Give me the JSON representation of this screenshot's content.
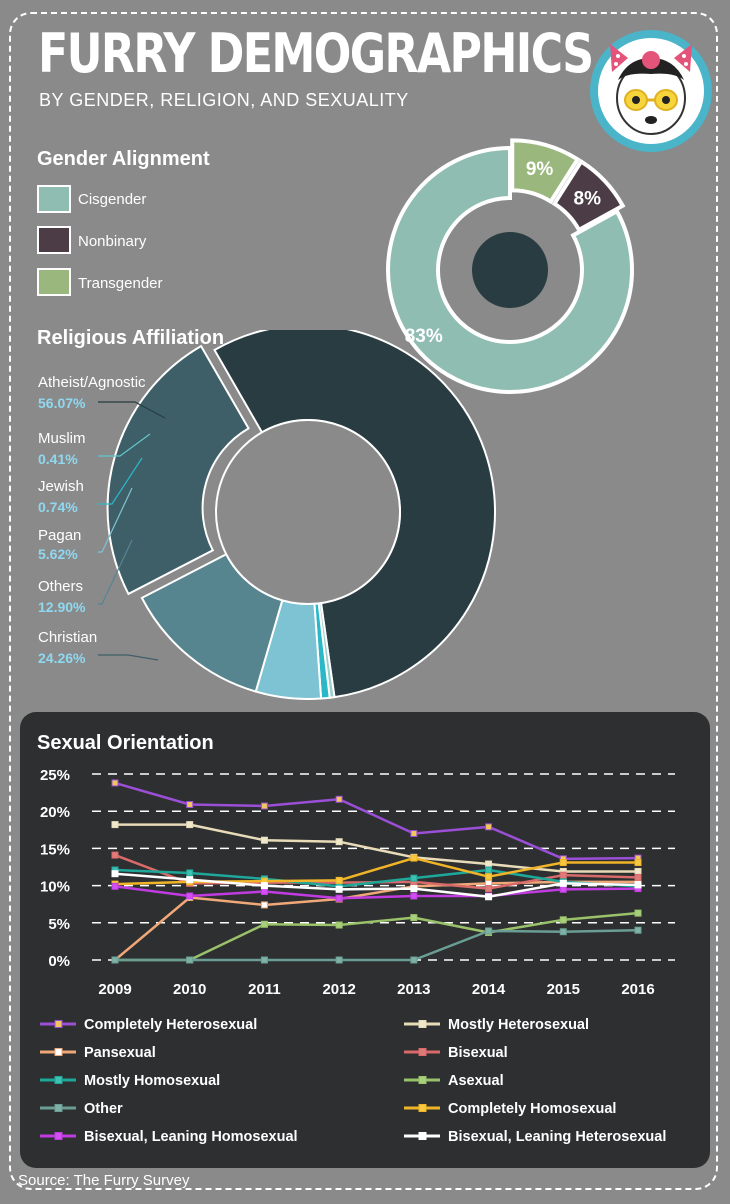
{
  "header": {
    "title": "FURRY DEMOGRAPHICS",
    "subtitle": "BY GENDER, RELIGION, AND SEXUALITY"
  },
  "logo": {
    "icon": "panda-with-bow-icon"
  },
  "gender": {
    "heading": "Gender Alignment",
    "legend": [
      {
        "label": "Cisgender",
        "color": "#8fbdb2"
      },
      {
        "label": "Nonbinary",
        "color": "#4c3c45"
      },
      {
        "label": "Transgender",
        "color": "#9ab77e"
      }
    ]
  },
  "religion": {
    "heading": "Religious Affiliation",
    "labels": [
      {
        "name": "Atheist/Agnostic",
        "value": "56.07%"
      },
      {
        "name": "Muslim",
        "value": "0.41%"
      },
      {
        "name": "Jewish",
        "value": "0.74%"
      },
      {
        "name": "Pagan",
        "value": "5.62%"
      },
      {
        "name": "Others",
        "value": "12.90%"
      },
      {
        "name": "Christian",
        "value": "24.26%"
      }
    ]
  },
  "orientation": {
    "heading": "Sexual Orientation"
  },
  "source": "Source: The Furry Survey",
  "chart_data": [
    {
      "type": "pie",
      "title": "Gender Alignment",
      "categories": [
        "Cisgender",
        "Nonbinary",
        "Transgender"
      ],
      "values": [
        83,
        8,
        9
      ],
      "value_labels": [
        "83%",
        "8%",
        "9%"
      ],
      "colors": [
        "#8fbdb2",
        "#4c3c45",
        "#9ab77e"
      ]
    },
    {
      "type": "pie",
      "title": "Religious Affiliation",
      "categories": [
        "Atheist/Agnostic",
        "Muslim",
        "Jewish",
        "Pagan",
        "Others",
        "Christian"
      ],
      "values": [
        56.07,
        0.41,
        0.74,
        5.62,
        12.9,
        24.26
      ],
      "colors": [
        "#283c42",
        "#9ad0cc",
        "#2ab8c8",
        "#7ec3d3",
        "#568590",
        "#3f5f68"
      ]
    },
    {
      "type": "line",
      "title": "Sexual Orientation",
      "x": [
        "2009",
        "2010",
        "2011",
        "2012",
        "2013",
        "2014",
        "2015",
        "2016"
      ],
      "ylim": [
        0,
        25
      ],
      "yticks": [
        0,
        5,
        10,
        15,
        20,
        25
      ],
      "ytick_labels": [
        "0%",
        "5%",
        "10%",
        "15%",
        "20%",
        "25%"
      ],
      "grid": "dashed horizontal",
      "legend_placement": "bottom",
      "series": [
        {
          "name": "Completely Heterosexual",
          "color": "#9b4fd6",
          "marker": "#f0c75c",
          "values": [
            23.8,
            20.9,
            20.7,
            21.6,
            17.0,
            17.9,
            13.6,
            13.7
          ]
        },
        {
          "name": "Mostly Heterosexual",
          "color": "#e8dcb8",
          "marker": "#f0e8cc",
          "values": [
            18.2,
            18.2,
            16.1,
            15.9,
            13.8,
            12.9,
            11.9,
            11.9
          ]
        },
        {
          "name": "Pansexual",
          "color": "#f0a878",
          "marker": "#ffffff",
          "values": [
            0.0,
            8.4,
            7.4,
            8.2,
            9.9,
            10.3,
            10.5,
            10.5
          ]
        },
        {
          "name": "Bisexual",
          "color": "#d86a6a",
          "marker": "#e07a7a",
          "values": [
            14.1,
            10.3,
            10.4,
            10.4,
            10.5,
            9.6,
            11.4,
            11.1
          ]
        },
        {
          "name": "Mostly Homosexual",
          "color": "#1ea89a",
          "marker": "#3fc0b0",
          "values": [
            12.1,
            11.7,
            10.9,
            9.9,
            11.0,
            12.1,
            10.5,
            9.9
          ]
        },
        {
          "name": "Asexual",
          "color": "#9ac26a",
          "marker": "#a8d07a",
          "values": [
            0.0,
            0.0,
            4.8,
            4.7,
            5.7,
            3.7,
            5.4,
            6.3
          ]
        },
        {
          "name": "Other",
          "color": "#6a9e94",
          "marker": "#7eb2a6",
          "values": [
            0.0,
            0.0,
            0.0,
            0.0,
            0.0,
            3.9,
            3.8,
            4.0
          ]
        },
        {
          "name": "Completely Homosexual",
          "color": "#f0b428",
          "marker": "#f8c840",
          "values": [
            10.2,
            10.5,
            10.6,
            10.7,
            13.7,
            11.2,
            13.1,
            13.1
          ]
        },
        {
          "name": "Bisexual, Leaning Homosexual",
          "color": "#c03ce0",
          "marker": "#d050f0",
          "values": [
            9.9,
            8.6,
            9.2,
            8.3,
            8.6,
            8.6,
            9.5,
            9.6
          ]
        },
        {
          "name": "Bisexual, Leaning Heterosexual",
          "color": "#ffffff",
          "marker": "#ffffff",
          "values": [
            11.6,
            10.8,
            10.0,
            9.5,
            9.6,
            8.5,
            10.3,
            10.1
          ]
        }
      ]
    }
  ]
}
